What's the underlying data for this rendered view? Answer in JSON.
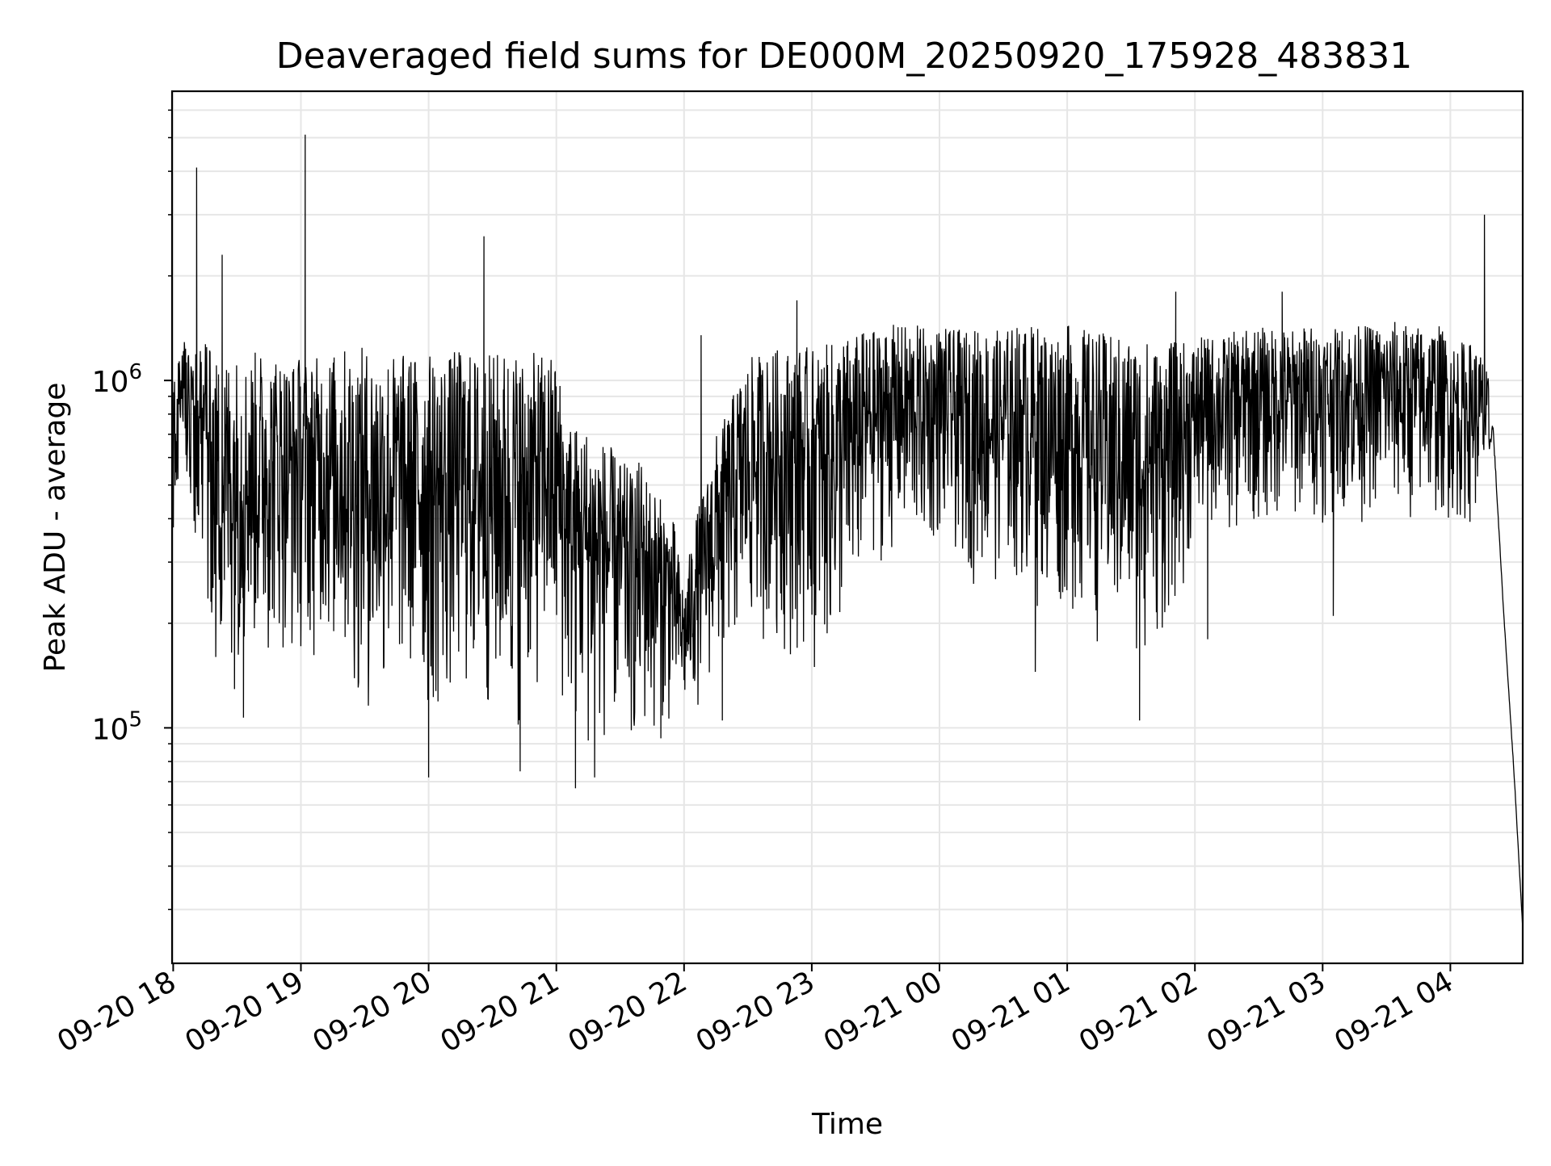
{
  "chart_data": {
    "type": "line",
    "title": "Deaveraged field sums for DE000M_20250920_175928_483831",
    "xlabel": "Time",
    "ylabel": "Peak ADU - average",
    "y_scale": "log",
    "ylim": [
      21000,
      6800000
    ],
    "xlim": [
      "2025-09-20 17:59:28",
      "2025-09-21 04:34:00"
    ],
    "grid": true,
    "legend": "none",
    "line_color": "#000000",
    "grid_color": "#e6e6e6",
    "x_ticks": [
      {
        "label": "09-20 18",
        "value": "2025-09-20 18:00"
      },
      {
        "label": "09-20 19",
        "value": "2025-09-20 19:00"
      },
      {
        "label": "09-20 20",
        "value": "2025-09-20 20:00"
      },
      {
        "label": "09-20 21",
        "value": "2025-09-20 21:00"
      },
      {
        "label": "09-20 22",
        "value": "2025-09-20 22:00"
      },
      {
        "label": "09-20 23",
        "value": "2025-09-20 23:00"
      },
      {
        "label": "09-21 00",
        "value": "2025-09-21 00:00"
      },
      {
        "label": "09-21 01",
        "value": "2025-09-21 01:00"
      },
      {
        "label": "09-21 02",
        "value": "2025-09-21 02:00"
      },
      {
        "label": "09-21 03",
        "value": "2025-09-21 03:00"
      },
      {
        "label": "09-21 04",
        "value": "2025-09-21 04:00"
      }
    ],
    "y_ticks": [
      {
        "base": "10",
        "exp": "5",
        "value": 100000
      },
      {
        "base": "10",
        "exp": "6",
        "value": 1000000
      }
    ],
    "series": [
      {
        "x": [
          "2025-09-20 17:59:28",
          "2025-09-20 18:05",
          "2025-09-20 18:10",
          "2025-09-20 18:15",
          "2025-09-20 18:20",
          "2025-09-20 18:25",
          "2025-09-20 18:30",
          "2025-09-20 18:35",
          "2025-09-20 18:40",
          "2025-09-20 18:45",
          "2025-09-20 18:50",
          "2025-09-20 18:55",
          "2025-09-20 19:00",
          "2025-09-20 19:05",
          "2025-09-20 19:10",
          "2025-09-20 19:15",
          "2025-09-20 19:20",
          "2025-09-20 19:25",
          "2025-09-20 19:30",
          "2025-09-20 19:35",
          "2025-09-20 19:40",
          "2025-09-20 19:45",
          "2025-09-20 19:50",
          "2025-09-20 19:55",
          "2025-09-20 20:00",
          "2025-09-20 20:05",
          "2025-09-20 20:10",
          "2025-09-20 20:15",
          "2025-09-20 20:20",
          "2025-09-20 20:25",
          "2025-09-20 20:30",
          "2025-09-20 20:35",
          "2025-09-20 20:40",
          "2025-09-20 20:45",
          "2025-09-20 20:50",
          "2025-09-20 20:55",
          "2025-09-20 21:00",
          "2025-09-20 21:05",
          "2025-09-20 21:10",
          "2025-09-20 21:15",
          "2025-09-20 21:20",
          "2025-09-20 21:25",
          "2025-09-20 21:30",
          "2025-09-20 21:35",
          "2025-09-20 21:40",
          "2025-09-20 21:45",
          "2025-09-20 21:50",
          "2025-09-20 21:55",
          "2025-09-20 22:00",
          "2025-09-20 22:05",
          "2025-09-20 22:10",
          "2025-09-20 22:15",
          "2025-09-20 22:20",
          "2025-09-20 22:25",
          "2025-09-20 22:30",
          "2025-09-20 22:35",
          "2025-09-20 22:40",
          "2025-09-20 22:45",
          "2025-09-20 22:50",
          "2025-09-20 22:55",
          "2025-09-20 23:00",
          "2025-09-20 23:05",
          "2025-09-20 23:10",
          "2025-09-20 23:15",
          "2025-09-20 23:20",
          "2025-09-20 23:25",
          "2025-09-20 23:30",
          "2025-09-20 23:35",
          "2025-09-20 23:40",
          "2025-09-20 23:45",
          "2025-09-20 23:50",
          "2025-09-20 23:55",
          "2025-09-21 00:00",
          "2025-09-21 00:05",
          "2025-09-21 00:10",
          "2025-09-21 00:15",
          "2025-09-21 00:20",
          "2025-09-21 00:25",
          "2025-09-21 00:30",
          "2025-09-21 00:35",
          "2025-09-21 00:40",
          "2025-09-21 00:45",
          "2025-09-21 00:50",
          "2025-09-21 00:55",
          "2025-09-21 01:00",
          "2025-09-21 01:05",
          "2025-09-21 01:10",
          "2025-09-21 01:15",
          "2025-09-21 01:20",
          "2025-09-21 01:25",
          "2025-09-21 01:30",
          "2025-09-21 01:35",
          "2025-09-21 01:40",
          "2025-09-21 01:45",
          "2025-09-21 01:50",
          "2025-09-21 01:55",
          "2025-09-21 02:00",
          "2025-09-21 02:05",
          "2025-09-21 02:10",
          "2025-09-21 02:15",
          "2025-09-21 02:20",
          "2025-09-21 02:25",
          "2025-09-21 02:30",
          "2025-09-21 02:35",
          "2025-09-21 02:40",
          "2025-09-21 02:45",
          "2025-09-21 02:50",
          "2025-09-21 02:55",
          "2025-09-21 03:00",
          "2025-09-21 03:05",
          "2025-09-21 03:10",
          "2025-09-21 03:15",
          "2025-09-21 03:20",
          "2025-09-21 03:25",
          "2025-09-21 03:30",
          "2025-09-21 03:35",
          "2025-09-21 03:40",
          "2025-09-21 03:45",
          "2025-09-21 03:50",
          "2025-09-21 03:55",
          "2025-09-21 04:00",
          "2025-09-21 04:05",
          "2025-09-21 04:10",
          "2025-09-21 04:15",
          "2025-09-21 04:20",
          "2025-09-21 04:25",
          "2025-09-21 04:30",
          "2025-09-21 04:34"
        ],
        "upper": [
          1000000,
          1300000,
          1200000,
          1300000,
          1150000,
          1200000,
          1200000,
          1150000,
          1250000,
          1200000,
          1200000,
          1150000,
          1200000,
          1150000,
          1200000,
          1200000,
          1250000,
          1250000,
          1250000,
          1250000,
          1250000,
          1200000,
          1200000,
          1200000,
          1200000,
          1200000,
          1200000,
          1250000,
          1200000,
          1200000,
          1200000,
          1250000,
          1250000,
          1200000,
          1200000,
          1200000,
          1200000,
          800000,
          750000,
          750000,
          700000,
          650000,
          600000,
          550000,
          600000,
          500000,
          450000,
          400000,
          250000,
          400000,
          500000,
          700000,
          800000,
          1000000,
          1150000,
          1200000,
          1200000,
          1250000,
          1250000,
          1250000,
          1250000,
          1250000,
          1300000,
          1350000,
          1350000,
          1400000,
          1400000,
          1450000,
          1450000,
          1450000,
          1450000,
          1400000,
          1450000,
          1400000,
          1400000,
          1400000,
          1450000,
          1400000,
          1400000,
          1450000,
          1450000,
          1450000,
          1450000,
          1450000,
          1450000,
          1450000,
          1400000,
          1400000,
          1350000,
          1350000,
          1350000,
          1350000,
          1300000,
          1250000,
          1300000,
          1300000,
          1300000,
          1350000,
          1350000,
          1350000,
          1400000,
          1400000,
          1450000,
          1400000,
          1450000,
          1400000,
          1450000,
          1450000,
          1450000,
          1400000,
          1450000,
          1450000,
          1450000,
          1450000,
          1450000,
          1500000,
          1450000,
          1450000,
          1450000,
          1450000,
          1300000,
          1300000,
          1300000,
          1200000,
          900000,
          190000,
          70000,
          22000
        ],
        "lower": [
          320000,
          550000,
          300000,
          250000,
          130000,
          120000,
          130000,
          150000,
          140000,
          150000,
          160000,
          140000,
          150000,
          150000,
          160000,
          140000,
          130000,
          110000,
          100000,
          95000,
          110000,
          115000,
          120000,
          110000,
          95000,
          90000,
          100000,
          110000,
          105000,
          100000,
          95000,
          90000,
          90000,
          100000,
          110000,
          130000,
          110000,
          95000,
          85000,
          80000,
          80000,
          85000,
          85000,
          80000,
          80000,
          85000,
          90000,
          95000,
          100000,
          110000,
          120000,
          130000,
          140000,
          150000,
          160000,
          170000,
          170000,
          160000,
          150000,
          150000,
          140000,
          140000,
          150000,
          160000,
          200000,
          250000,
          280000,
          300000,
          300000,
          300000,
          310000,
          300000,
          320000,
          300000,
          280000,
          260000,
          250000,
          250000,
          240000,
          240000,
          240000,
          220000,
          200000,
          200000,
          200000,
          190000,
          180000,
          170000,
          160000,
          150000,
          150000,
          140000,
          150000,
          170000,
          200000,
          250000,
          320000,
          350000,
          350000,
          340000,
          340000,
          360000,
          360000,
          360000,
          370000,
          360000,
          380000,
          380000,
          380000,
          400000,
          400000,
          390000,
          380000,
          400000,
          400000,
          380000,
          360000,
          370000,
          380000,
          380000,
          380000,
          360000,
          380000,
          380000,
          600000,
          180000,
          60000,
          22000
        ],
        "spikes": [
          {
            "x": "2025-09-20 18:11",
            "y": 4100000
          },
          {
            "x": "2025-09-20 18:23",
            "y": 2300000
          },
          {
            "x": "2025-09-20 19:02",
            "y": 5100000
          },
          {
            "x": "2025-09-20 19:02",
            "y": 1900000
          },
          {
            "x": "2025-09-20 20:26",
            "y": 2600000
          },
          {
            "x": "2025-09-20 22:08",
            "y": 1350000
          },
          {
            "x": "2025-09-20 22:53",
            "y": 1700000
          },
          {
            "x": "2025-09-21 01:51",
            "y": 1800000
          },
          {
            "x": "2025-09-21 02:41",
            "y": 1800000
          },
          {
            "x": "2025-09-21 04:16",
            "y": 3000000
          },
          {
            "x": "2025-09-20 18:20",
            "y": 160000
          },
          {
            "x": "2025-09-20 18:33",
            "y": 107000
          },
          {
            "x": "2025-09-20 20:00",
            "y": 72000
          },
          {
            "x": "2025-09-20 20:43",
            "y": 75000
          },
          {
            "x": "2025-09-20 21:09",
            "y": 67000
          },
          {
            "x": "2025-09-20 21:18",
            "y": 72000
          },
          {
            "x": "2025-09-20 22:18",
            "y": 105000
          },
          {
            "x": "2025-09-21 00:45",
            "y": 145000
          },
          {
            "x": "2025-09-21 01:34",
            "y": 105000
          },
          {
            "x": "2025-09-21 02:06",
            "y": 180000
          },
          {
            "x": "2025-09-21 03:05",
            "y": 210000
          }
        ]
      }
    ]
  }
}
